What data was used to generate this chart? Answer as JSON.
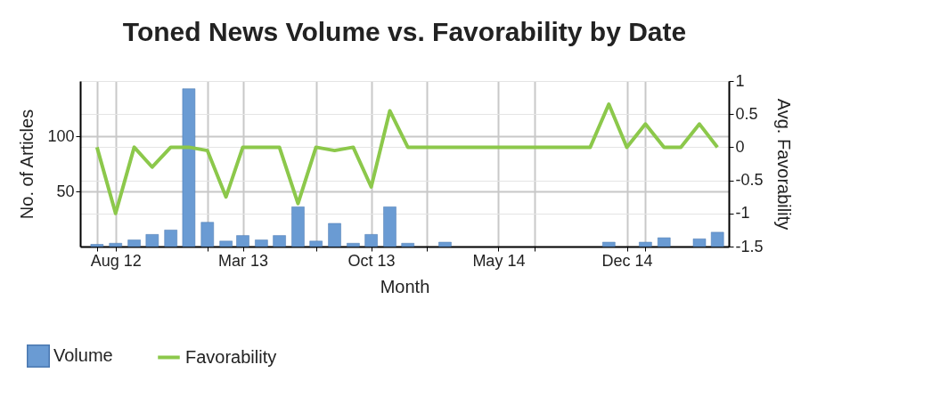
{
  "chart_data": {
    "type": "bar",
    "title": "Toned News Volume vs. Favorability by Date",
    "xlabel": "Month",
    "ylabel": "No. of Articles",
    "y2label": "Avg. Favorability",
    "x": [
      "2012-07",
      "2012-08",
      "2012-09",
      "2012-10",
      "2012-11",
      "2012-12",
      "2013-01",
      "2013-02",
      "2013-03",
      "2013-04",
      "2013-05",
      "2013-06",
      "2013-07",
      "2013-08",
      "2013-09",
      "2013-10",
      "2013-11",
      "2013-12",
      "2014-01",
      "2014-02",
      "2014-03",
      "2014-04",
      "2014-05",
      "2014-06",
      "2014-07",
      "2014-08",
      "2014-09",
      "2014-10",
      "2014-11",
      "2014-12",
      "2015-01",
      "2015-02",
      "2015-03",
      "2015-04",
      "2015-05"
    ],
    "series": [
      {
        "name": "Volume",
        "color": "#6a9bd3",
        "values": [
          2,
          3,
          6,
          11,
          15,
          143,
          22,
          5,
          10,
          6,
          10,
          36,
          5,
          21,
          3,
          11,
          36,
          3,
          null,
          4,
          null,
          null,
          null,
          null,
          null,
          null,
          null,
          null,
          4,
          null,
          4,
          8,
          null,
          7,
          13
        ]
      },
      {
        "name": "Favorability",
        "type": "line",
        "axis": "y2",
        "color": "#8cc84b",
        "values": [
          0,
          -1,
          0,
          -0.3,
          0,
          0,
          -0.05,
          -0.75,
          0,
          0,
          0,
          -0.85,
          0,
          -0.05,
          0,
          -0.6,
          0.55,
          0,
          0,
          0,
          0,
          0,
          0,
          0,
          0,
          0,
          0,
          0,
          0.65,
          0,
          0.35,
          0,
          0,
          0.35,
          0
        ]
      }
    ],
    "xlim": [
      "2012-06-03",
      "2015-05-20"
    ],
    "xticks": [
      {
        "value": "2012-07",
        "label": null
      },
      {
        "value": "2012-08",
        "label": "Aug 12"
      },
      {
        "value": "2013-01",
        "label": null
      },
      {
        "value": "2013-03",
        "label": "Mar 13"
      },
      {
        "value": "2013-07",
        "label": null
      },
      {
        "value": "2013-10",
        "label": "Oct 13"
      },
      {
        "value": "2014-01",
        "label": null
      },
      {
        "value": "2014-05",
        "label": "May 14"
      },
      {
        "value": "2014-07",
        "label": null
      },
      {
        "value": "2014-12",
        "label": "Dec 14"
      },
      {
        "value": "2015-01",
        "label": null
      }
    ],
    "ylim": [
      0,
      150
    ],
    "yticks": [
      50,
      100
    ],
    "y2lim": [
      -1.5,
      1
    ],
    "y2ticks": [
      -1.5,
      -1,
      -0.5,
      0,
      0.5,
      1
    ],
    "grid": true,
    "legend": "bottom left",
    "line_style": "solid",
    "marker": "none"
  }
}
